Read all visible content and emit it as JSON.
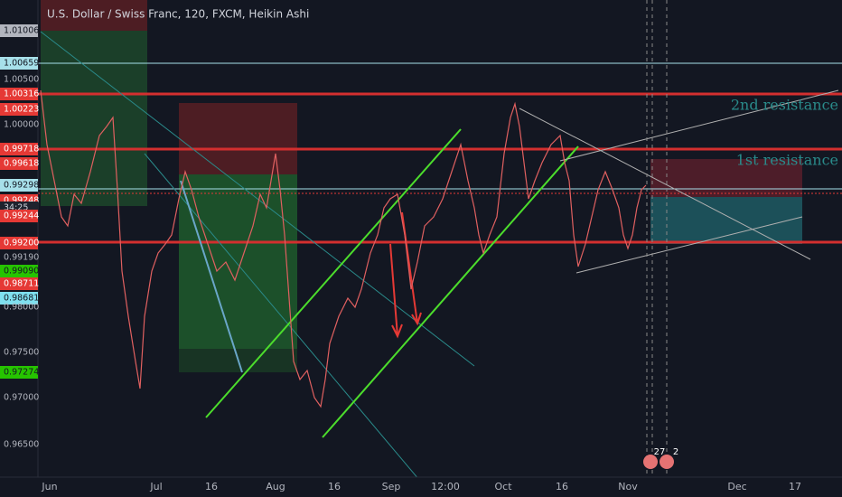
{
  "header": {
    "title": "U.S. Dollar / Swiss Franc, 120, FXCM, Heikin Ashi"
  },
  "price_axis": {
    "labels": [
      "1.01006",
      "1.00659",
      "1.00500",
      "1.00316",
      "1.00223",
      "1.00000",
      "0.99718",
      "0.99618",
      "0.99298",
      "0.99248",
      "34:25",
      "0.99244",
      "0.99200",
      "0.99190",
      "0.99090",
      "0.98711",
      "0.98681",
      "0.98000",
      "0.97500",
      "0.97274",
      "0.97000",
      "0.96500"
    ]
  },
  "time_axis": {
    "labels": [
      "Jun",
      "Jul",
      "16",
      "Aug",
      "16",
      "Sep",
      "12:00",
      "Oct",
      "16",
      "Nov",
      "Dec",
      "17"
    ]
  },
  "annotations": [
    "2nd resistance",
    "1st resistance"
  ],
  "badges": [
    "27",
    "2"
  ]
}
